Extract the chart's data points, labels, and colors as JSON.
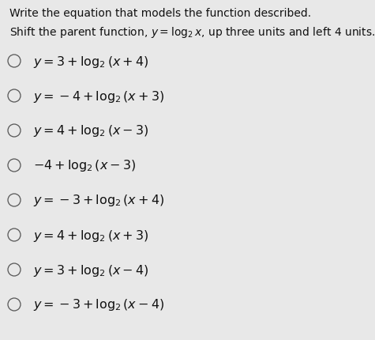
{
  "title_line1": "Write the equation that models the function described.",
  "title_line2": "Shift the parent function, $y = \\log_2 x$, up three units and left 4 units.",
  "options": [
    "$y = 3 + \\log_2(x + 4)$",
    "$y = -4 + \\log_2(x + 3)$",
    "$y = 4 + \\log_2(x - 3)$",
    "$-4 + \\log_2(x - 3)$",
    "$y = -3 + \\log_2(x + 4)$",
    "$y = 4 + \\log_2(x + 3)$",
    "$y = 3 + \\log_2(x - 4)$",
    "$y = -3 + \\log_2(x - 4)$"
  ],
  "bg_color": "#e8e8e8",
  "text_color": "#111111",
  "font_size_title": 10.0,
  "font_size_subtitle": 10.0,
  "font_size_options": 11.5
}
